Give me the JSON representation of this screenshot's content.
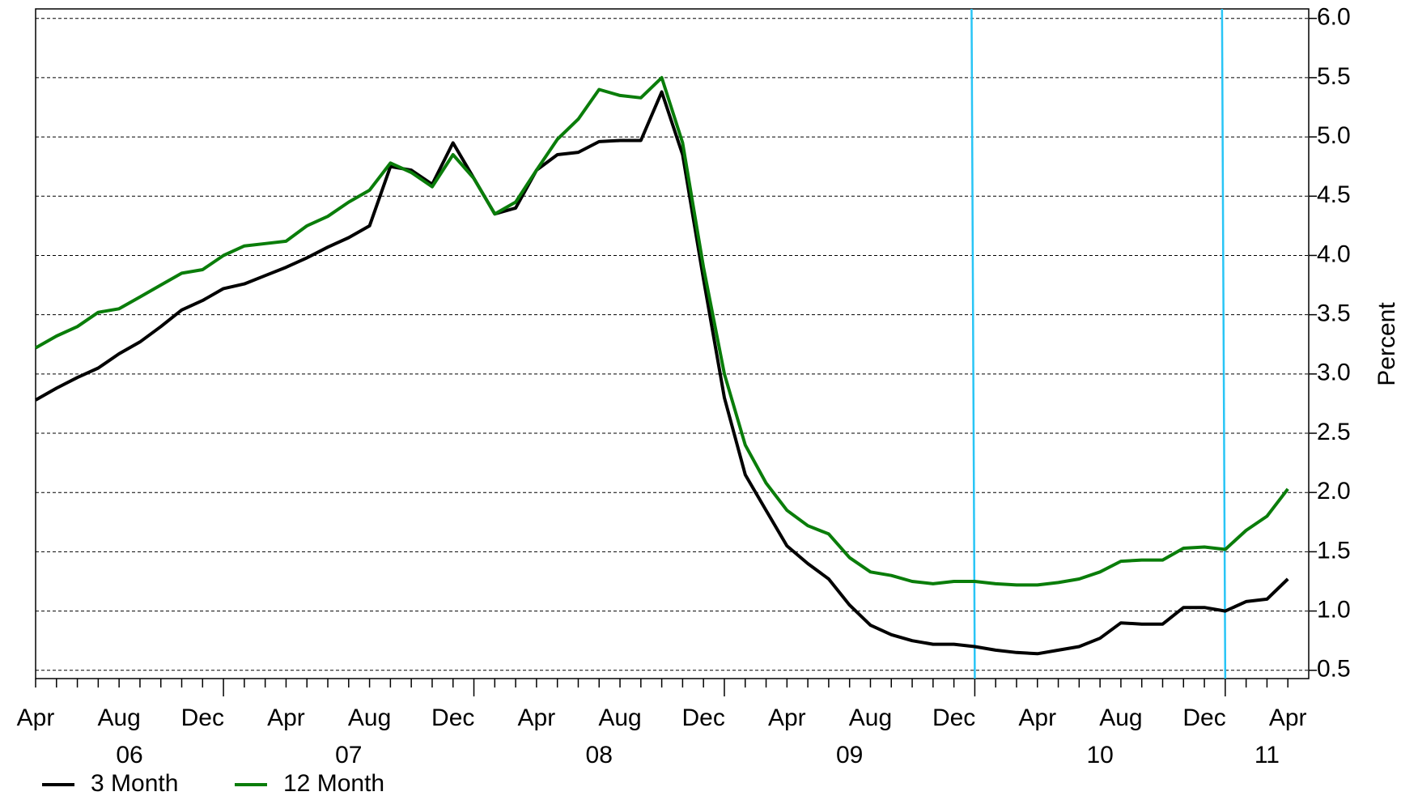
{
  "chart_data": {
    "type": "line",
    "y_axis_label": "Percent",
    "x": [
      "2006-04",
      "2006-05",
      "2006-06",
      "2006-07",
      "2006-08",
      "2006-09",
      "2006-10",
      "2006-11",
      "2006-12",
      "2007-01",
      "2007-02",
      "2007-03",
      "2007-04",
      "2007-05",
      "2007-06",
      "2007-07",
      "2007-08",
      "2007-09",
      "2007-10",
      "2007-11",
      "2007-12",
      "2008-01",
      "2008-02",
      "2008-03",
      "2008-04",
      "2008-05",
      "2008-06",
      "2008-07",
      "2008-08",
      "2008-09",
      "2008-10",
      "2008-11",
      "2008-12",
      "2009-01",
      "2009-02",
      "2009-03",
      "2009-04",
      "2009-05",
      "2009-06",
      "2009-07",
      "2009-08",
      "2009-09",
      "2009-10",
      "2009-11",
      "2009-12",
      "2010-01",
      "2010-02",
      "2010-03",
      "2010-04",
      "2010-05",
      "2010-06",
      "2010-07",
      "2010-08",
      "2010-09",
      "2010-10",
      "2010-11",
      "2010-12",
      "2011-01",
      "2011-02",
      "2011-03",
      "2011-04"
    ],
    "series": [
      {
        "name": "3 Month",
        "color": "#000000",
        "values": [
          2.78,
          2.88,
          2.97,
          3.05,
          3.17,
          3.27,
          3.4,
          3.54,
          3.62,
          3.72,
          3.76,
          3.83,
          3.9,
          3.98,
          4.07,
          4.15,
          4.25,
          4.75,
          4.72,
          4.6,
          4.95,
          4.65,
          4.35,
          4.4,
          4.72,
          4.85,
          4.87,
          4.96,
          4.97,
          4.97,
          5.38,
          4.85,
          3.8,
          2.8,
          2.15,
          1.85,
          1.55,
          1.4,
          1.27,
          1.05,
          0.88,
          0.8,
          0.75,
          0.72,
          0.72,
          0.7,
          0.67,
          0.65,
          0.64,
          0.67,
          0.7,
          0.77,
          0.9,
          0.89,
          0.89,
          1.03,
          1.03,
          1.0,
          1.08,
          1.1,
          1.27
        ]
      },
      {
        "name": "12 Month",
        "color": "#0a7d0a",
        "values": [
          3.22,
          3.32,
          3.4,
          3.52,
          3.55,
          3.65,
          3.75,
          3.85,
          3.88,
          4.0,
          4.08,
          4.1,
          4.12,
          4.25,
          4.33,
          4.45,
          4.55,
          4.78,
          4.7,
          4.58,
          4.85,
          4.65,
          4.35,
          4.45,
          4.72,
          4.98,
          5.15,
          5.4,
          5.35,
          5.33,
          5.5,
          4.95,
          3.9,
          3.0,
          2.4,
          2.08,
          1.85,
          1.72,
          1.65,
          1.45,
          1.33,
          1.3,
          1.25,
          1.23,
          1.25,
          1.25,
          1.23,
          1.22,
          1.22,
          1.24,
          1.27,
          1.33,
          1.42,
          1.43,
          1.43,
          1.53,
          1.54,
          1.52,
          1.68,
          1.8,
          2.03
        ]
      }
    ],
    "xlim": [
      "2006-04",
      "2011-05"
    ],
    "xticks": [
      {
        "value": "2006-04",
        "label": "Apr"
      },
      {
        "value": "2006-08",
        "label": "Aug"
      },
      {
        "value": "2006-12",
        "label": "Dec"
      },
      {
        "value": "2007-04",
        "label": "Apr"
      },
      {
        "value": "2007-08",
        "label": "Aug"
      },
      {
        "value": "2007-12",
        "label": "Dec"
      },
      {
        "value": "2008-04",
        "label": "Apr"
      },
      {
        "value": "2008-08",
        "label": "Aug"
      },
      {
        "value": "2008-12",
        "label": "Dec"
      },
      {
        "value": "2009-04",
        "label": "Apr"
      },
      {
        "value": "2009-08",
        "label": "Aug"
      },
      {
        "value": "2009-12",
        "label": "Dec"
      },
      {
        "value": "2010-04",
        "label": "Apr"
      },
      {
        "value": "2010-08",
        "label": "Aug"
      },
      {
        "value": "2010-12",
        "label": "Dec"
      },
      {
        "value": "2011-04",
        "label": "Apr"
      }
    ],
    "year_labels": [
      {
        "value": 2006,
        "label": "06"
      },
      {
        "value": 2007,
        "label": "07"
      },
      {
        "value": 2008,
        "label": "08"
      },
      {
        "value": 2009,
        "label": "09"
      },
      {
        "value": 2010,
        "label": "10"
      },
      {
        "value": 2011,
        "label": "11"
      }
    ],
    "vlines": [
      "2010-01",
      "2011-01"
    ],
    "vline_color": "#29c5f6",
    "ylim": [
      0.43,
      6.08
    ],
    "yticks": [
      {
        "value": 0.5,
        "label": "0.5"
      },
      {
        "value": 1,
        "label": "1.0"
      },
      {
        "value": 1.5,
        "label": "1.5"
      },
      {
        "value": 2,
        "label": "2.0"
      },
      {
        "value": 2.5,
        "label": "2.5"
      },
      {
        "value": 3,
        "label": "3.0"
      },
      {
        "value": 3.5,
        "label": "3.5"
      },
      {
        "value": 4,
        "label": "4.0"
      },
      {
        "value": 4.5,
        "label": "4.5"
      },
      {
        "value": 5,
        "label": "5.0"
      },
      {
        "value": 5.5,
        "label": "5.5"
      },
      {
        "value": 6,
        "label": "6.0"
      }
    ],
    "grid": true,
    "legend": "bottom-left"
  }
}
